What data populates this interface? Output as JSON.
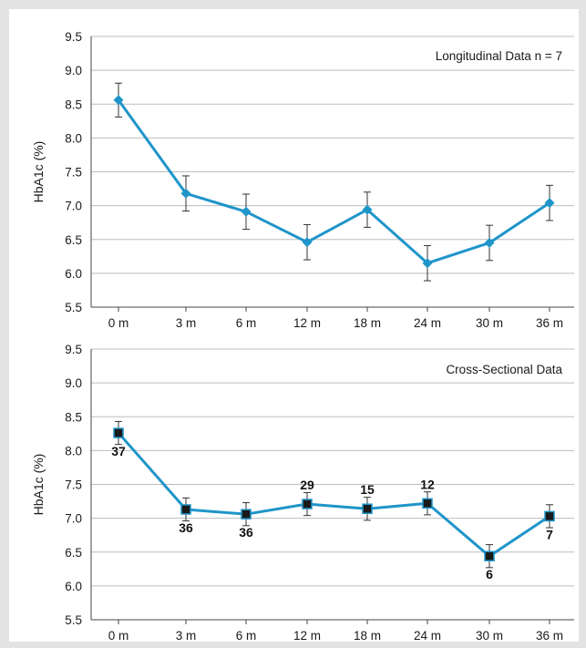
{
  "colors": {
    "line": "#1f95c9",
    "marker_diamond": "#1f95c9",
    "marker_square_fill": "#1a1a1a",
    "marker_square_edge": "#1f95c9",
    "grid": "#bdbdbd",
    "background": "#e3e3e3"
  },
  "chart_data": [
    {
      "type": "line",
      "title": "Longitudinal Data n = 7",
      "ylabel": "HbA1c (%)",
      "xlabel": "",
      "categories": [
        "0 m",
        "3 m",
        "6 m",
        "12 m",
        "18 m",
        "24 m",
        "30 m",
        "36 m"
      ],
      "values": [
        8.56,
        7.18,
        6.91,
        6.46,
        6.94,
        6.15,
        6.45,
        7.04
      ],
      "error": [
        0.25,
        0.26,
        0.26,
        0.26,
        0.26,
        0.26,
        0.26,
        0.26
      ],
      "yticks": [
        "5.5",
        "6.0",
        "6.5",
        "7.0",
        "7.5",
        "8.0",
        "8.5",
        "9.0",
        "9.5"
      ],
      "ylim": [
        5.5,
        9.5
      ],
      "marker": "diamond",
      "grid": "horizontal",
      "sample_sizes": []
    },
    {
      "type": "line",
      "title": "Cross-Sectional Data",
      "ylabel": "HbA1c (%)",
      "xlabel": "",
      "categories": [
        "0 m",
        "3 m",
        "6 m",
        "12 m",
        "18 m",
        "24 m",
        "30 m",
        "36 m"
      ],
      "values": [
        8.26,
        7.13,
        7.06,
        7.21,
        7.14,
        7.22,
        6.44,
        7.03
      ],
      "error": [
        0.17,
        0.17,
        0.17,
        0.17,
        0.17,
        0.17,
        0.17,
        0.17
      ],
      "yticks": [
        "5.5",
        "6.0",
        "6.5",
        "7.0",
        "7.5",
        "8.0",
        "8.5",
        "9.0",
        "9.5"
      ],
      "ylim": [
        5.5,
        9.5
      ],
      "marker": "square",
      "grid": "horizontal",
      "sample_sizes": [
        "37",
        "36",
        "36",
        "29",
        "15",
        "12",
        "6",
        "7"
      ]
    }
  ]
}
